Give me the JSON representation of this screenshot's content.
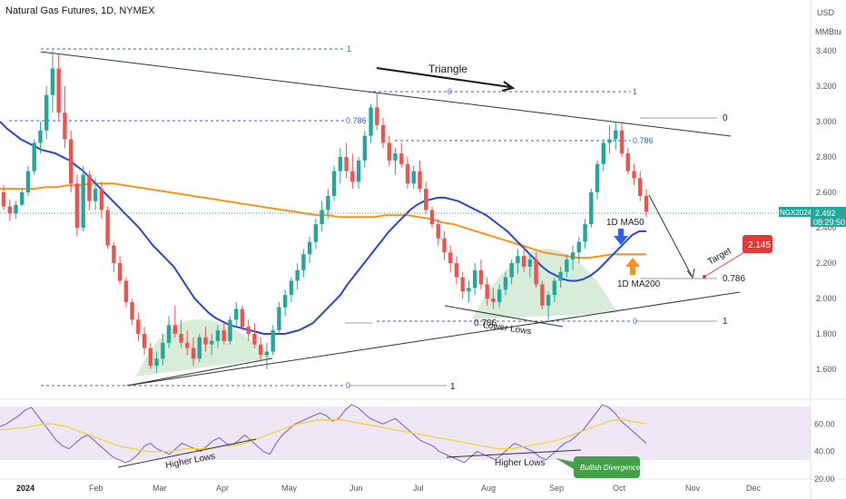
{
  "chart_data": {
    "type": "candlestick",
    "title": "Natural Gas Futures, 1D, NYMEX",
    "currency": "USD",
    "unit": "MMBtu",
    "ticker": "NGX2024",
    "last_price": "2.492",
    "countdown": "08:29:50",
    "target_price": "2.145",
    "ylim": [
      1.45,
      3.55
    ],
    "y_ticks": [
      "3.400",
      "3.200",
      "3.000",
      "2.800",
      "2.600",
      "2.400",
      "2.200",
      "2.000",
      "1.800",
      "1.600"
    ],
    "x_ticks": [
      "2024",
      "Feb",
      "Mar",
      "Apr",
      "May",
      "Jun",
      "Jul",
      "Aug",
      "Sep",
      "Oct",
      "Nov",
      "Dec"
    ],
    "rsi_ticks": [
      "60.00",
      "40.00",
      "20.00"
    ],
    "rsi_ylim": [
      20,
      78
    ],
    "annotations": {
      "triangle": "Triangle",
      "ma50": "1D MA50",
      "ma200": "1D MA200",
      "higher_lows_price": "Higher Lows",
      "lower_lows": "Lower Lows",
      "target": "Target",
      "higher_lows_rsi_left": "Higher Lows",
      "higher_lows_rsi_right": "Higher Lows",
      "bullish_divergence": "Bullish Divergence"
    },
    "fib_labels": {
      "f1_top": "1",
      "f0786_left": "0.786",
      "f0_left": "0",
      "f0_mid": "0",
      "f1_mid": "1",
      "f0786_mid": "0.786",
      "f0_right": "0",
      "f0786_right": "0.786",
      "f0786_low": "0.786",
      "f0_low": "0",
      "f1_low": "1"
    },
    "candles_ohlc": [
      [
        2.6,
        2.64,
        2.5,
        2.52
      ],
      [
        2.52,
        2.56,
        2.44,
        2.48
      ],
      [
        2.48,
        2.55,
        2.45,
        2.53
      ],
      [
        2.53,
        2.62,
        2.52,
        2.6
      ],
      [
        2.6,
        2.75,
        2.58,
        2.72
      ],
      [
        2.72,
        2.9,
        2.7,
        2.88
      ],
      [
        2.88,
        3.0,
        2.82,
        2.95
      ],
      [
        2.95,
        3.2,
        2.9,
        3.15
      ],
      [
        3.15,
        3.4,
        3.05,
        3.3
      ],
      [
        3.3,
        3.38,
        3.0,
        3.05
      ],
      [
        3.05,
        3.2,
        2.85,
        2.9
      ],
      [
        2.9,
        2.95,
        2.6,
        2.65
      ],
      [
        2.65,
        2.7,
        2.35,
        2.4
      ],
      [
        2.4,
        2.75,
        2.38,
        2.7
      ],
      [
        2.7,
        2.72,
        2.5,
        2.55
      ],
      [
        2.55,
        2.68,
        2.5,
        2.62
      ],
      [
        2.62,
        2.66,
        2.45,
        2.5
      ],
      [
        2.5,
        2.52,
        2.28,
        2.3
      ],
      [
        2.3,
        2.32,
        2.15,
        2.2
      ],
      [
        2.2,
        2.24,
        2.08,
        2.1
      ],
      [
        2.1,
        2.12,
        1.95,
        1.98
      ],
      [
        1.98,
        2.0,
        1.85,
        1.88
      ],
      [
        1.88,
        1.92,
        1.76,
        1.8
      ],
      [
        1.8,
        1.84,
        1.68,
        1.72
      ],
      [
        1.72,
        1.75,
        1.6,
        1.62
      ],
      [
        1.62,
        1.7,
        1.58,
        1.66
      ],
      [
        1.66,
        1.8,
        1.62,
        1.75
      ],
      [
        1.75,
        1.9,
        1.72,
        1.85
      ],
      [
        1.85,
        1.96,
        1.78,
        1.8
      ],
      [
        1.8,
        1.88,
        1.72,
        1.75
      ],
      [
        1.75,
        1.82,
        1.68,
        1.72
      ],
      [
        1.72,
        1.78,
        1.62,
        1.66
      ],
      [
        1.66,
        1.8,
        1.64,
        1.78
      ],
      [
        1.78,
        1.84,
        1.7,
        1.74
      ],
      [
        1.74,
        1.8,
        1.68,
        1.76
      ],
      [
        1.76,
        1.85,
        1.72,
        1.82
      ],
      [
        1.82,
        1.86,
        1.74,
        1.76
      ],
      [
        1.76,
        1.9,
        1.74,
        1.88
      ],
      [
        1.88,
        1.98,
        1.84,
        1.94
      ],
      [
        1.94,
        1.96,
        1.82,
        1.84
      ],
      [
        1.84,
        1.88,
        1.76,
        1.8
      ],
      [
        1.8,
        1.86,
        1.72,
        1.74
      ],
      [
        1.74,
        1.78,
        1.65,
        1.68
      ],
      [
        1.68,
        1.75,
        1.6,
        1.7
      ],
      [
        1.7,
        1.85,
        1.68,
        1.82
      ],
      [
        1.82,
        1.98,
        1.8,
        1.95
      ],
      [
        1.95,
        2.05,
        1.9,
        2.02
      ],
      [
        2.02,
        2.12,
        1.98,
        2.1
      ],
      [
        2.1,
        2.2,
        2.05,
        2.16
      ],
      [
        2.16,
        2.28,
        2.12,
        2.25
      ],
      [
        2.25,
        2.35,
        2.2,
        2.32
      ],
      [
        2.32,
        2.45,
        2.28,
        2.42
      ],
      [
        2.42,
        2.55,
        2.38,
        2.5
      ],
      [
        2.5,
        2.62,
        2.45,
        2.58
      ],
      [
        2.58,
        2.75,
        2.55,
        2.72
      ],
      [
        2.72,
        2.85,
        2.65,
        2.8
      ],
      [
        2.8,
        2.88,
        2.68,
        2.72
      ],
      [
        2.72,
        2.82,
        2.62,
        2.66
      ],
      [
        2.66,
        2.8,
        2.62,
        2.78
      ],
      [
        2.78,
        2.95,
        2.74,
        2.92
      ],
      [
        2.92,
        3.1,
        2.88,
        3.08
      ],
      [
        3.08,
        3.16,
        2.95,
        2.98
      ],
      [
        2.98,
        3.02,
        2.85,
        2.88
      ],
      [
        2.88,
        2.92,
        2.75,
        2.78
      ],
      [
        2.78,
        2.85,
        2.7,
        2.82
      ],
      [
        2.82,
        2.88,
        2.74,
        2.76
      ],
      [
        2.76,
        2.8,
        2.62,
        2.65
      ],
      [
        2.65,
        2.75,
        2.62,
        2.72
      ],
      [
        2.72,
        2.78,
        2.6,
        2.62
      ],
      [
        2.62,
        2.66,
        2.48,
        2.5
      ],
      [
        2.5,
        2.52,
        2.4,
        2.42
      ],
      [
        2.42,
        2.45,
        2.3,
        2.34
      ],
      [
        2.34,
        2.38,
        2.22,
        2.26
      ],
      [
        2.26,
        2.3,
        2.15,
        2.2
      ],
      [
        2.2,
        2.24,
        2.08,
        2.12
      ],
      [
        2.12,
        2.15,
        2.0,
        2.04
      ],
      [
        2.04,
        2.1,
        1.98,
        2.06
      ],
      [
        2.06,
        2.2,
        2.02,
        2.16
      ],
      [
        2.16,
        2.22,
        2.05,
        2.08
      ],
      [
        2.08,
        2.12,
        1.96,
        2.0
      ],
      [
        2.0,
        2.06,
        1.94,
        1.98
      ],
      [
        1.98,
        2.08,
        1.95,
        2.05
      ],
      [
        2.05,
        2.15,
        2.02,
        2.12
      ],
      [
        2.12,
        2.22,
        2.08,
        2.2
      ],
      [
        2.2,
        2.28,
        2.14,
        2.24
      ],
      [
        2.24,
        2.3,
        2.15,
        2.18
      ],
      [
        2.18,
        2.25,
        2.12,
        2.22
      ],
      [
        2.22,
        2.26,
        2.06,
        2.08
      ],
      [
        2.08,
        2.1,
        1.94,
        1.96
      ],
      [
        1.96,
        2.04,
        1.88,
        2.02
      ],
      [
        2.02,
        2.12,
        1.98,
        2.1
      ],
      [
        2.1,
        2.18,
        2.06,
        2.15
      ],
      [
        2.15,
        2.25,
        2.12,
        2.22
      ],
      [
        2.22,
        2.3,
        2.16,
        2.26
      ],
      [
        2.26,
        2.35,
        2.2,
        2.32
      ],
      [
        2.32,
        2.45,
        2.28,
        2.42
      ],
      [
        2.42,
        2.62,
        2.4,
        2.6
      ],
      [
        2.6,
        2.78,
        2.56,
        2.76
      ],
      [
        2.76,
        2.9,
        2.72,
        2.88
      ],
      [
        2.88,
        2.98,
        2.82,
        2.9
      ],
      [
        2.9,
        3.0,
        2.84,
        2.95
      ],
      [
        2.95,
        3.0,
        2.8,
        2.82
      ],
      [
        2.82,
        2.85,
        2.7,
        2.72
      ],
      [
        2.72,
        2.76,
        2.64,
        2.68
      ],
      [
        2.68,
        2.72,
        2.55,
        2.58
      ],
      [
        2.58,
        2.62,
        2.46,
        2.49
      ]
    ],
    "ma50": [
      3.0,
      2.96,
      2.93,
      2.9,
      2.88,
      2.86,
      2.84,
      2.83,
      2.82,
      2.8,
      2.78,
      2.75,
      2.72,
      2.68,
      2.64,
      2.6,
      2.56,
      2.52,
      2.48,
      2.44,
      2.4,
      2.35,
      2.3,
      2.26,
      2.22,
      2.18,
      2.12,
      2.06,
      2.0,
      1.96,
      1.92,
      1.89,
      1.87,
      1.85,
      1.84,
      1.83,
      1.82,
      1.81,
      1.8,
      1.8,
      1.8,
      1.8,
      1.81,
      1.82,
      1.84,
      1.86,
      1.9,
      1.94,
      1.98,
      2.02,
      2.08,
      2.13,
      2.18,
      2.23,
      2.28,
      2.33,
      2.38,
      2.42,
      2.46,
      2.5,
      2.53,
      2.55,
      2.56,
      2.57,
      2.57,
      2.56,
      2.55,
      2.53,
      2.51,
      2.49,
      2.47,
      2.44,
      2.41,
      2.38,
      2.34,
      2.3,
      2.26,
      2.22,
      2.18,
      2.15,
      2.13,
      2.11,
      2.1,
      2.1,
      2.11,
      2.13,
      2.16,
      2.2,
      2.24,
      2.28,
      2.32,
      2.36,
      2.38,
      2.38
    ],
    "ma200": [
      2.62,
      2.62,
      2.62,
      2.62,
      2.63,
      2.63,
      2.64,
      2.64,
      2.65,
      2.65,
      2.65,
      2.64,
      2.63,
      2.62,
      2.61,
      2.6,
      2.59,
      2.58,
      2.57,
      2.56,
      2.55,
      2.54,
      2.53,
      2.52,
      2.51,
      2.5,
      2.49,
      2.48,
      2.47,
      2.47,
      2.46,
      2.46,
      2.46,
      2.46,
      2.47,
      2.47,
      2.47,
      2.46,
      2.45,
      2.43,
      2.42,
      2.4,
      2.38,
      2.36,
      2.34,
      2.32,
      2.3,
      2.28,
      2.26,
      2.25,
      2.24,
      2.23,
      2.23,
      2.24,
      2.25,
      2.25,
      2.25,
      2.25
    ],
    "rsi": [
      58,
      60,
      63,
      66,
      70,
      72,
      66,
      60,
      54,
      48,
      44,
      42,
      46,
      50,
      52,
      48,
      44,
      40,
      36,
      34,
      32,
      34,
      38,
      44,
      46,
      42,
      40,
      38,
      42,
      46,
      44,
      42,
      40,
      44,
      48,
      50,
      46,
      44,
      48,
      52,
      48,
      44,
      40,
      38,
      46,
      52,
      56,
      60,
      62,
      64,
      66,
      68,
      66,
      62,
      64,
      70,
      74,
      72,
      68,
      64,
      62,
      60,
      62,
      64,
      60,
      56,
      52,
      48,
      46,
      44,
      40,
      38,
      36,
      34,
      32,
      36,
      40,
      38,
      36,
      34,
      38,
      42,
      46,
      44,
      42,
      40,
      36,
      34,
      38,
      42,
      46,
      48,
      52,
      56,
      62,
      68,
      74,
      72,
      68,
      62,
      58,
      54,
      50,
      46
    ],
    "rsi_ma": [
      56,
      56,
      57,
      57,
      58,
      59,
      60,
      60,
      59,
      58,
      56,
      54,
      52,
      50,
      48,
      46,
      44,
      43,
      42,
      41,
      40,
      40,
      40,
      40,
      41,
      42,
      42,
      42,
      42,
      43,
      44,
      44,
      45,
      46,
      48,
      50,
      52,
      54,
      56,
      58,
      60,
      61,
      62,
      63,
      63,
      63,
      63,
      62,
      61,
      60,
      59,
      58,
      57,
      56,
      55,
      54,
      53,
      52,
      51,
      50,
      49,
      48,
      47,
      46,
      45,
      44,
      43,
      42,
      42,
      42,
      43,
      44,
      45,
      46,
      47,
      48,
      50,
      52,
      54,
      56,
      58,
      60,
      62,
      63,
      63,
      62,
      61,
      60
    ]
  }
}
